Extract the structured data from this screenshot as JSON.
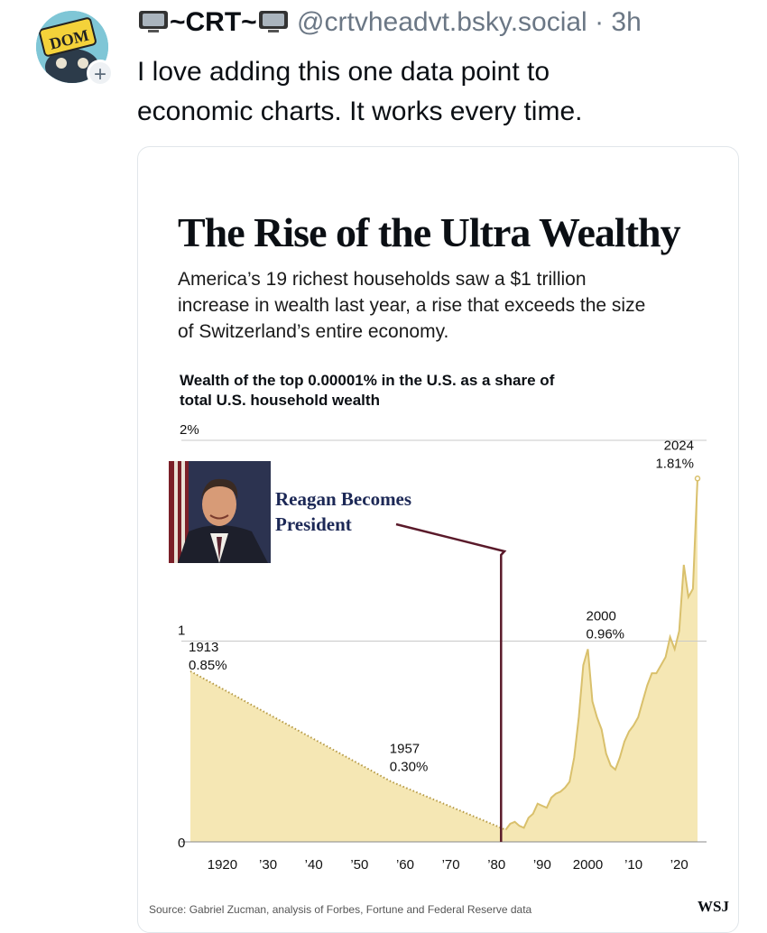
{
  "post": {
    "display_name": "~CRT~",
    "handle": "@crtvheadvt.bsky.social",
    "separator": "·",
    "time": "3h",
    "text": "I love adding this one data point to\neconomic charts.  It works every time.",
    "avatar_text": "DOM"
  },
  "chart_data": {
    "type": "area",
    "title": "The Rise of the Ultra Wealthy",
    "subtitle": "America’s 19 richest households saw a $1 trillion increase in wealth last year, a rise that exceeds the size of Switzerland’s entire economy.",
    "ylabel": "Wealth of the top 0.00001% in the U.S. as a share of total U.S. household wealth",
    "ylim": [
      0,
      2
    ],
    "xlim": [
      1913,
      2024
    ],
    "y_ticks": [
      {
        "value": 0,
        "label": "0"
      },
      {
        "value": 1,
        "label": "1"
      },
      {
        "value": 2,
        "label": "2%"
      }
    ],
    "x_ticks": [
      {
        "value": 1920,
        "label": "1920"
      },
      {
        "value": 1930,
        "label": "’30"
      },
      {
        "value": 1940,
        "label": "’40"
      },
      {
        "value": 1950,
        "label": "’50"
      },
      {
        "value": 1960,
        "label": "’60"
      },
      {
        "value": 1970,
        "label": "’70"
      },
      {
        "value": 1980,
        "label": "’80"
      },
      {
        "value": 1990,
        "label": "’90"
      },
      {
        "value": 2000,
        "label": "2000"
      },
      {
        "value": 2010,
        "label": "’10"
      },
      {
        "value": 2020,
        "label": "’20"
      }
    ],
    "grid": "horizontal",
    "dotted_segment": [
      [
        1913,
        0.85
      ],
      [
        1957,
        0.3
      ],
      [
        1982,
        0.06
      ]
    ],
    "series": [
      {
        "x": [
          1982,
          1983,
          1984,
          1985,
          1986,
          1987,
          1988,
          1989,
          1990,
          1991,
          1992,
          1993,
          1994,
          1995,
          1996,
          1997,
          1998,
          1999,
          2000,
          2001,
          2002,
          2003,
          2004,
          2005,
          2006,
          2007,
          2008,
          2009,
          2010,
          2011,
          2012,
          2013,
          2014,
          2015,
          2016,
          2017,
          2018,
          2019,
          2020,
          2021,
          2022,
          2023,
          2024
        ],
        "values": [
          0.06,
          0.09,
          0.1,
          0.08,
          0.07,
          0.12,
          0.14,
          0.19,
          0.18,
          0.17,
          0.22,
          0.24,
          0.25,
          0.27,
          0.3,
          0.42,
          0.62,
          0.88,
          0.96,
          0.7,
          0.62,
          0.56,
          0.44,
          0.38,
          0.36,
          0.42,
          0.5,
          0.55,
          0.58,
          0.62,
          0.7,
          0.78,
          0.84,
          0.84,
          0.88,
          0.92,
          1.02,
          0.96,
          1.05,
          1.38,
          1.22,
          1.26,
          1.81
        ]
      }
    ],
    "annotations": [
      {
        "x": 1913,
        "y": 0.85,
        "year": "1913",
        "value": "0.85%"
      },
      {
        "x": 1957,
        "y": 0.3,
        "year": "1957",
        "value": "0.30%"
      },
      {
        "x": 2000,
        "y": 0.96,
        "year": "2000",
        "value": "0.96%"
      },
      {
        "x": 2024,
        "y": 1.81,
        "year": "2024",
        "value": "1.81%"
      }
    ],
    "marker": {
      "x": 1981,
      "label": "Reagan Becomes\nPresident"
    },
    "source": "Source: Gabriel Zucman, analysis of Forbes, Fortune and Federal Reserve data",
    "credit": "WSJ",
    "colors": {
      "fill": "#f5e7b4",
      "line": "#d9c06c",
      "dotted": "#b69a45",
      "marker_line": "#5a1a2a",
      "grid": "#c9c9c9"
    }
  }
}
